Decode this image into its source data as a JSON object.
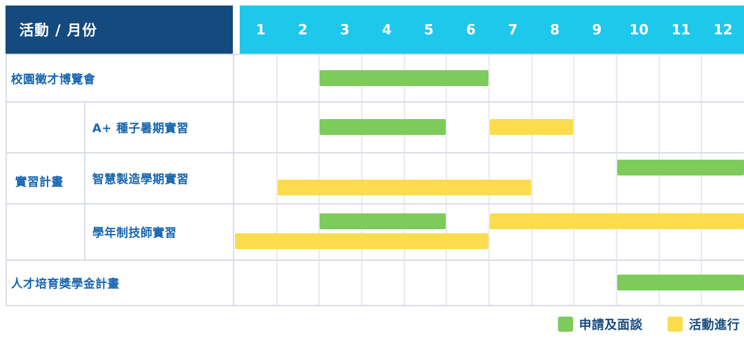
{
  "header": {
    "corner_label": "活動 / 月份",
    "months": [
      "1",
      "2",
      "3",
      "4",
      "5",
      "6",
      "7",
      "8",
      "9",
      "10",
      "11",
      "12"
    ]
  },
  "colors": {
    "header_dark_blue": "#154a7e",
    "header_cyan": "#1ec8eb",
    "apply_green": "#7dcb5b",
    "activity_yellow": "#fbdc4d",
    "label_blue": "#1766b0",
    "legend_text_blue": "#164a7e"
  },
  "legend": [
    {
      "key": "apply",
      "label": "申請及面談",
      "color": "#7dcb5b"
    },
    {
      "key": "activity",
      "label": "活動進行",
      "color": "#fbdc4d"
    }
  ],
  "chart_data": {
    "type": "gantt",
    "x_unit": "month",
    "x_range": [
      1,
      12
    ],
    "bar_types": {
      "apply": "申請及面談 (green)",
      "activity": "活動進行 (yellow)"
    },
    "rows": [
      {
        "group": "",
        "label": "校園徵才博覽會",
        "tracks": [
          [
            {
              "type": "apply",
              "start": 3,
              "end": 6
            }
          ]
        ]
      },
      {
        "group": "實習計畫",
        "label": "A+ 種子暑期實習",
        "tracks": [
          [
            {
              "type": "apply",
              "start": 3,
              "end": 5
            },
            {
              "type": "activity",
              "start": 7,
              "end": 8
            }
          ]
        ]
      },
      {
        "group": "實習計畫",
        "label": "智慧製造學期實習",
        "tracks": [
          [
            {
              "type": "apply",
              "start": 10,
              "end": 12
            }
          ],
          [
            {
              "type": "activity",
              "start": 2,
              "end": 7
            }
          ]
        ]
      },
      {
        "group": "實習計畫",
        "label": "學年制技師實習",
        "tracks": [
          [
            {
              "type": "apply",
              "start": 3,
              "end": 5
            },
            {
              "type": "activity",
              "start": 7,
              "end": 12
            }
          ],
          [
            {
              "type": "activity",
              "start": 1,
              "end": 6
            }
          ]
        ]
      },
      {
        "group": "",
        "label": "人才培育獎學金計畫",
        "tracks": [
          [
            {
              "type": "apply",
              "start": 10,
              "end": 12
            }
          ]
        ]
      }
    ],
    "group_label": "實習計畫"
  }
}
